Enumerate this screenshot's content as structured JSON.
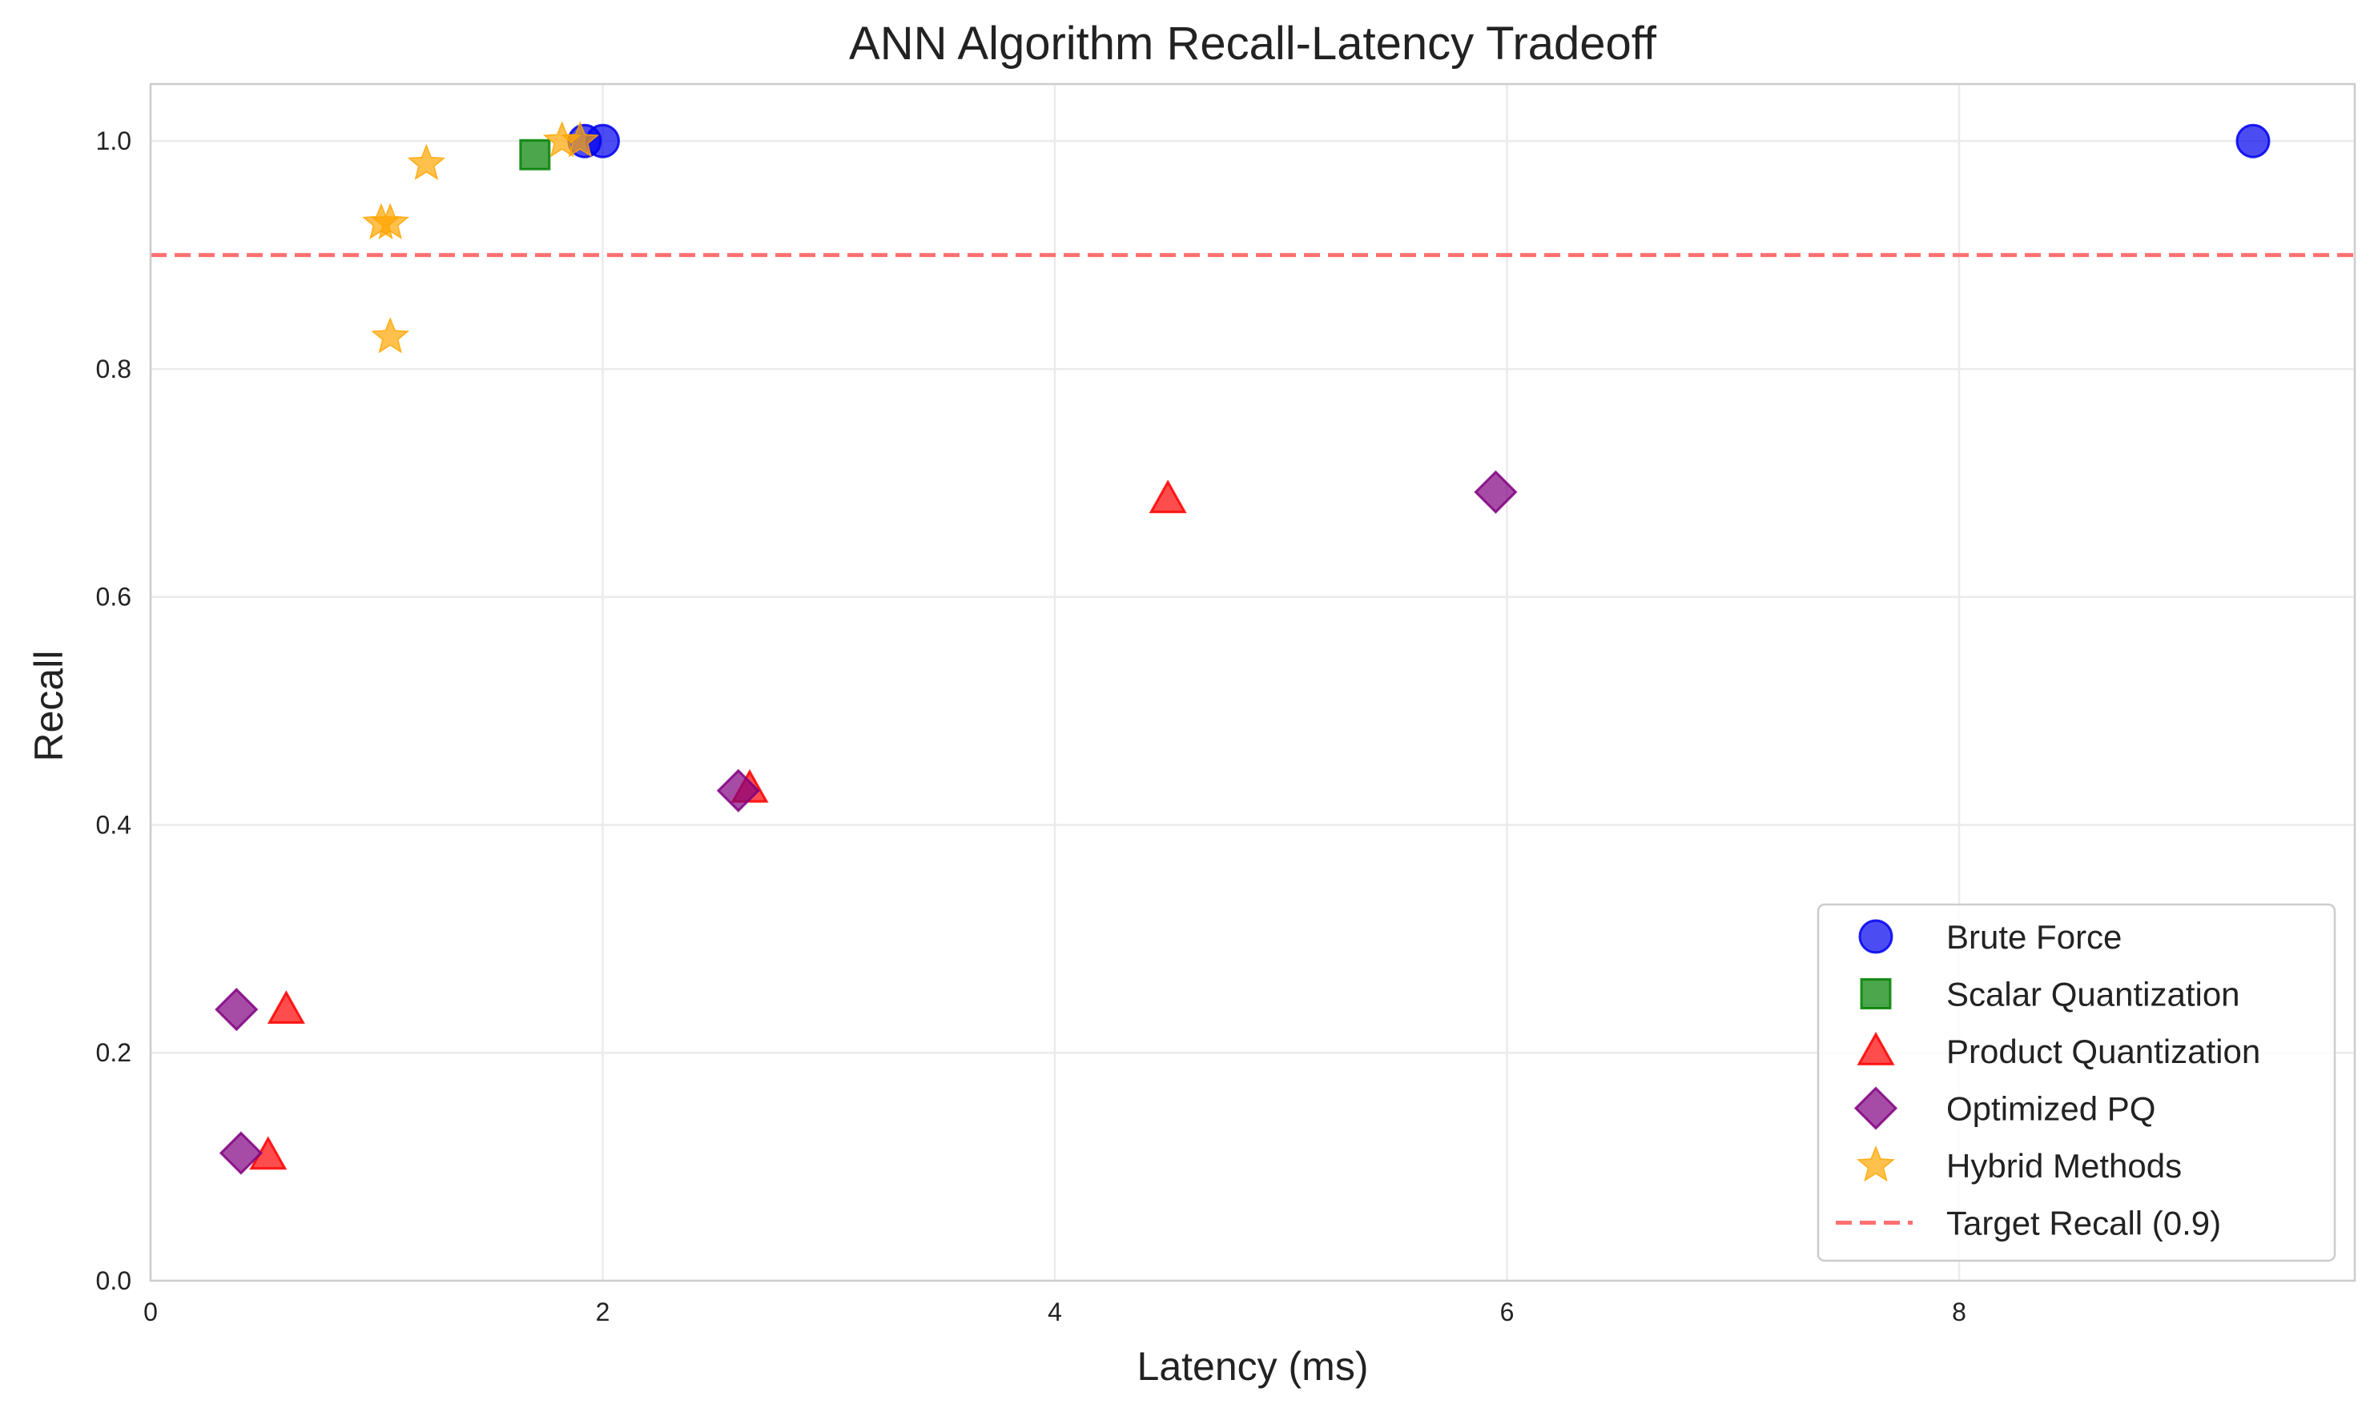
{
  "chart_data": {
    "type": "scatter",
    "title": "ANN Algorithm Recall-Latency Tradeoff",
    "xlabel": "Latency (ms)",
    "ylabel": "Recall",
    "xlim": [
      0,
      9.75
    ],
    "ylim": [
      0,
      1.05
    ],
    "xticks": [
      0,
      2,
      4,
      6,
      8
    ],
    "xtick_labels": [
      "0",
      "2",
      "4",
      "6",
      "8"
    ],
    "yticks": [
      0.0,
      0.2,
      0.4,
      0.6,
      0.8,
      1.0
    ],
    "ytick_labels": [
      "0.0",
      "0.2",
      "0.4",
      "0.6",
      "0.8",
      "1.0"
    ],
    "grid": true,
    "legend_position": "lower-right",
    "series": [
      {
        "name": "Brute Force",
        "marker": "circle",
        "color": "#0000ee",
        "points": [
          [
            1.92,
            1.0
          ],
          [
            2.0,
            1.0
          ],
          [
            9.3,
            1.0
          ]
        ]
      },
      {
        "name": "Scalar Quantization",
        "marker": "square",
        "color": "#008000",
        "points": [
          [
            1.7,
            0.988
          ]
        ]
      },
      {
        "name": "Product Quantization",
        "marker": "triangle",
        "color": "#ff0000",
        "points": [
          [
            0.6,
            0.238
          ],
          [
            0.52,
            0.11
          ],
          [
            2.65,
            0.432
          ],
          [
            4.5,
            0.686
          ]
        ]
      },
      {
        "name": "Optimized PQ",
        "marker": "diamond",
        "color": "#800080",
        "points": [
          [
            0.38,
            0.238
          ],
          [
            0.4,
            0.112
          ],
          [
            2.6,
            0.43
          ],
          [
            5.95,
            0.692
          ]
        ]
      },
      {
        "name": "Hybrid Methods",
        "marker": "star",
        "color": "#ffa500",
        "points": [
          [
            1.02,
            0.928
          ],
          [
            1.06,
            0.928
          ],
          [
            1.22,
            0.98
          ],
          [
            1.06,
            0.828
          ],
          [
            1.82,
            1.0
          ],
          [
            1.9,
            1.0
          ]
        ]
      }
    ],
    "reference_lines": [
      {
        "name": "Target Recall (0.9)",
        "orientation": "horizontal",
        "value": 0.9,
        "color": "#ff7070",
        "style": "dashed"
      }
    ]
  }
}
